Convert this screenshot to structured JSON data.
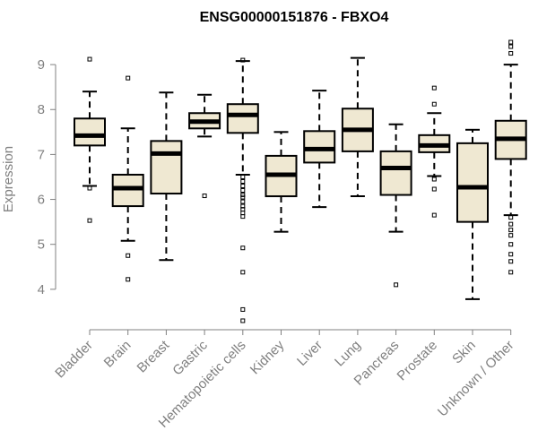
{
  "chart_data": {
    "type": "boxplot",
    "title": "ENSG00000151876 - FBXO4",
    "xlabel": "",
    "ylabel": "Expression",
    "ylim": [
      3.1,
      9.6
    ],
    "yticks": [
      4,
      5,
      6,
      7,
      8,
      9
    ],
    "box_fill": "#efe8d2",
    "categories": [
      "Bladder",
      "Brain",
      "Breast",
      "Gastric",
      "Hematopoietic cells",
      "Kidney",
      "Liver",
      "Lung",
      "Pancreas",
      "Prostate",
      "Skin",
      "Unknown / Other"
    ],
    "boxes": [
      {
        "category": "Bladder",
        "whisker_low": 6.3,
        "q1": 7.2,
        "median": 7.42,
        "q3": 7.8,
        "whisker_high": 8.4,
        "outliers": [
          9.12,
          6.25,
          5.53
        ]
      },
      {
        "category": "Brain",
        "whisker_low": 5.08,
        "q1": 5.85,
        "median": 6.25,
        "q3": 6.55,
        "whisker_high": 7.58,
        "outliers": [
          8.7,
          4.75,
          4.22
        ]
      },
      {
        "category": "Breast",
        "whisker_low": 4.65,
        "q1": 6.13,
        "median": 7.02,
        "q3": 7.3,
        "whisker_high": 8.38,
        "outliers": []
      },
      {
        "category": "Gastric",
        "whisker_low": 7.4,
        "q1": 7.58,
        "median": 7.73,
        "q3": 7.92,
        "whisker_high": 8.33,
        "outliers": [
          6.08
        ]
      },
      {
        "category": "Hematopoietic cells",
        "whisker_low": 6.55,
        "q1": 7.48,
        "median": 7.88,
        "q3": 8.12,
        "whisker_high": 9.08,
        "outliers": [
          9.1,
          6.5,
          6.4,
          6.3,
          6.2,
          6.1,
          6.05,
          5.95,
          5.85,
          5.78,
          5.7,
          5.62,
          4.92,
          4.38,
          3.55,
          3.3
        ]
      },
      {
        "category": "Kidney",
        "whisker_low": 5.28,
        "q1": 6.07,
        "median": 6.55,
        "q3": 6.97,
        "whisker_high": 7.5,
        "outliers": []
      },
      {
        "category": "Liver",
        "whisker_low": 5.83,
        "q1": 6.82,
        "median": 7.12,
        "q3": 7.52,
        "whisker_high": 8.42,
        "outliers": []
      },
      {
        "category": "Lung",
        "whisker_low": 6.07,
        "q1": 7.07,
        "median": 7.55,
        "q3": 8.02,
        "whisker_high": 9.15,
        "outliers": []
      },
      {
        "category": "Pancreas",
        "whisker_low": 5.28,
        "q1": 6.1,
        "median": 6.7,
        "q3": 7.07,
        "whisker_high": 7.67,
        "outliers": [
          4.1
        ]
      },
      {
        "category": "Prostate",
        "whisker_low": 6.52,
        "q1": 7.05,
        "median": 7.2,
        "q3": 7.43,
        "whisker_high": 7.92,
        "outliers": [
          8.48,
          8.12,
          6.45,
          6.23,
          5.65
        ]
      },
      {
        "category": "Skin",
        "whisker_low": 3.78,
        "q1": 5.5,
        "median": 6.27,
        "q3": 7.25,
        "whisker_high": 7.55,
        "outliers": []
      },
      {
        "category": "Unknown / Other",
        "whisker_low": 5.65,
        "q1": 6.9,
        "median": 7.35,
        "q3": 7.75,
        "whisker_high": 9.0,
        "outliers": [
          9.5,
          9.4,
          9.25,
          5.6,
          5.45,
          5.32,
          5.2,
          5.0,
          4.78,
          4.62,
          4.38
        ]
      }
    ]
  }
}
